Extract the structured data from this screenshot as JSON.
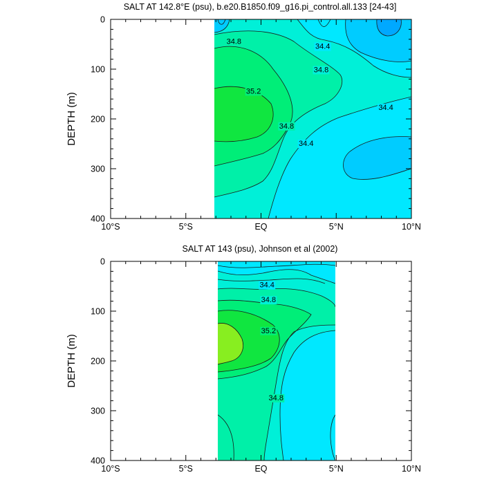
{
  "chart_data": [
    {
      "type": "contour",
      "title": "SALT AT 142.8°E (psu), b.e20.B1850.f09_g16.pi_control.all.133 [24-43]",
      "xlabel": "",
      "ylabel": "DEPTH (m)",
      "xlim": [
        -10,
        10
      ],
      "ylim": [
        400,
        0
      ],
      "x_ticks": [
        -10,
        -5,
        0,
        5,
        10
      ],
      "x_tick_labels": [
        "10°S",
        "5°S",
        "EQ",
        "5°N",
        "10°N"
      ],
      "y_ticks": [
        0,
        100,
        200,
        300,
        400
      ],
      "y_tick_labels": [
        "0",
        "100",
        "200",
        "300",
        "400"
      ],
      "data_extent_lon": [
        -3,
        10
      ],
      "contour_labels": [
        {
          "text": "34.8",
          "lon": -1.8,
          "depth": 45
        },
        {
          "text": "34.4",
          "lon": 4.1,
          "depth": 55
        },
        {
          "text": "34.8",
          "lon": 4.0,
          "depth": 102
        },
        {
          "text": "35.2",
          "lon": -0.5,
          "depth": 145
        },
        {
          "text": "34.8",
          "lon": 1.7,
          "depth": 215
        },
        {
          "text": "34.4",
          "lon": 8.3,
          "depth": 178
        },
        {
          "text": "34.4",
          "lon": 3.0,
          "depth": 250
        }
      ]
    },
    {
      "type": "contour",
      "title": "SALT AT 143 (psu), Johnson et al (2002)",
      "xlabel": "",
      "ylabel": "DEPTH (m)",
      "xlim": [
        -10,
        10
      ],
      "ylim": [
        400,
        0
      ],
      "x_ticks": [
        -10,
        -5,
        0,
        5,
        10
      ],
      "x_tick_labels": [
        "10°S",
        "5°S",
        "EQ",
        "5°N",
        "10°N"
      ],
      "y_ticks": [
        0,
        100,
        200,
        300,
        400
      ],
      "y_tick_labels": [
        "0",
        "100",
        "200",
        "300",
        "400"
      ],
      "data_extent_lon": [
        -2.8,
        5
      ],
      "contour_labels": [
        {
          "text": "34.4",
          "lon": 0.4,
          "depth": 48
        },
        {
          "text": "34.8",
          "lon": 0.5,
          "depth": 78
        },
        {
          "text": "35.2",
          "lon": 0.5,
          "depth": 140
        },
        {
          "text": "34.8",
          "lon": 1.0,
          "depth": 275
        }
      ]
    }
  ],
  "colors": {
    "sal_lt_34.0": "#00a8ff",
    "sal_34.0_34.2": "#00ccff",
    "sal_34.2_34.4": "#00e8ff",
    "sal_34.4_34.6": "#00f0d8",
    "sal_34.6_34.8": "#00f0a8",
    "sal_34.8_35.0": "#00ee78",
    "sal_35.0_35.2": "#10e640",
    "sal_gt_35.2": "#88ee20"
  }
}
